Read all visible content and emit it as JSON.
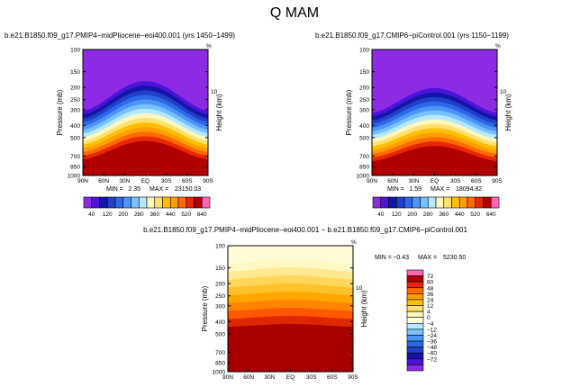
{
  "figure": {
    "title": "Q  MAM"
  },
  "chart_data": [
    {
      "type": "heatmap",
      "title": "b.e21.B1850.f09_g17.PMIP4−midPliocene−eoi400.001  (yrs 1450−1499)",
      "ylabel": "Pressure  (mb)",
      "right_label": "Height  (km)",
      "right_tick": "10",
      "corner_mark": "%",
      "xticks": [
        "90N",
        "60N",
        "30N",
        "EQ",
        "30S",
        "60S",
        "90S"
      ],
      "yticks": [
        "100",
        "150",
        "200",
        "250",
        "300",
        "400",
        "500",
        "700",
        "850",
        "1000"
      ],
      "min_label": "MIN =",
      "min_value": "2.35",
      "max_label": "MAX =",
      "max_value": "23150.03",
      "colorbar_labels": [
        "40",
        "120",
        "200",
        "280",
        "360",
        "440",
        "520",
        "640"
      ],
      "colors": [
        "#8c2be3",
        "#4a14d9",
        "#1414a8",
        "#2040c8",
        "#2e68e8",
        "#4c94f8",
        "#78c0ff",
        "#b4e8ff",
        "#fff6bc",
        "#ffe06c",
        "#ffbe00",
        "#ff9e00",
        "#ff6a00",
        "#e82800",
        "#b00000",
        "#ff66b4"
      ]
    },
    {
      "type": "heatmap",
      "title": "b.e21.B1850.f09_g17.CMIP6−piControl.001  (yrs 1150−1199)",
      "ylabel": "Pressure  (mb)",
      "right_label": "Height  (km)",
      "right_tick": "10",
      "corner_mark": "%",
      "xticks": [
        "90N",
        "60N",
        "30N",
        "EQ",
        "30S",
        "60S",
        "90S"
      ],
      "yticks": [
        "100",
        "150",
        "200",
        "250",
        "300",
        "400",
        "500",
        "700",
        "850",
        "1000"
      ],
      "min_label": "MIN =",
      "min_value": "1.59",
      "max_label": "MAX =",
      "max_value": "18094.82",
      "colorbar_labels": [
        "40",
        "120",
        "200",
        "280",
        "360",
        "440",
        "520",
        "640"
      ],
      "colors": [
        "#8c2be3",
        "#4a14d9",
        "#1414a8",
        "#2040c8",
        "#2e68e8",
        "#4c94f8",
        "#78c0ff",
        "#b4e8ff",
        "#fff6bc",
        "#ffe06c",
        "#ffbe00",
        "#ff9e00",
        "#ff6a00",
        "#e82800",
        "#b00000",
        "#ff66b4"
      ]
    },
    {
      "type": "heatmap",
      "title": "b.e21.B1850.f09_g17.PMIP4−midPliocene−eoi400.001  −  b.e21.B1850.f09_g17.CMIP6−piControl.001",
      "ylabel": "Pressure  (mb)",
      "right_label": "Height  (km)",
      "right_tick": "10",
      "corner_mark": "%",
      "xticks": [
        "90N",
        "60N",
        "30N",
        "EQ",
        "30S",
        "60S",
        "90S"
      ],
      "yticks": [
        "100",
        "150",
        "200",
        "250",
        "300",
        "400",
        "500",
        "700",
        "850",
        "1000"
      ],
      "min_label": "MIN =",
      "min_value": "−0.43",
      "max_label": "MAX =",
      "max_value": "5230.50",
      "colorbar_labels": [
        "72",
        "60",
        "48",
        "36",
        "24",
        "12",
        "4",
        "0",
        "−4",
        "−12",
        "−24",
        "−36",
        "−48",
        "−60",
        "−72"
      ],
      "colors": [
        "#ff66b4",
        "#b00000",
        "#e82800",
        "#ff6a00",
        "#ff9e00",
        "#ffbe00",
        "#ffe06c",
        "#fff6bc",
        "#ffffe0",
        "#b4e8ff",
        "#78c0ff",
        "#4c94f8",
        "#2e68e8",
        "#2040c8",
        "#1414a8",
        "#4a14d9",
        "#8c2be3"
      ]
    }
  ]
}
